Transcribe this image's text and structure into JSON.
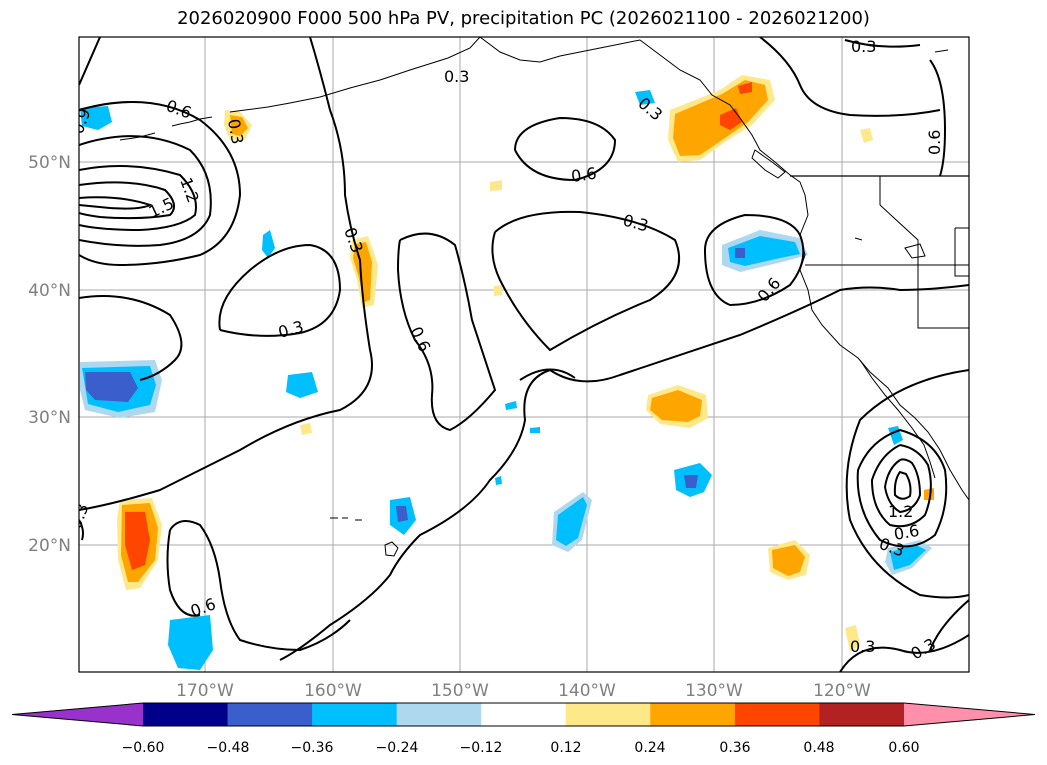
{
  "title": "2026020900 F000 500 hPa PV, precipitation PC (2026021100 - 2026021200)",
  "map": {
    "lat_labels": [
      "50°N",
      "40°N",
      "30°N",
      "20°N"
    ],
    "lon_labels": [
      "170°W",
      "160°W",
      "150°W",
      "140°W",
      "130°W",
      "120°W"
    ],
    "contour_labels": [
      "0.3",
      "0.6",
      "0.9",
      "1.2",
      "1.5"
    ]
  },
  "colorbar": {
    "ticks": [
      "−0.60",
      "−0.48",
      "−0.36",
      "−0.24",
      "−0.12",
      "0.12",
      "0.24",
      "0.36",
      "0.48",
      "0.60"
    ],
    "colors": [
      "#9932cc",
      "#00008b",
      "#3a5fcd",
      "#00bfff",
      "#add8f0",
      "#ffffff",
      "#ffe88a",
      "#ffa500",
      "#ff4500",
      "#b22222",
      "#ff8fab"
    ]
  }
}
